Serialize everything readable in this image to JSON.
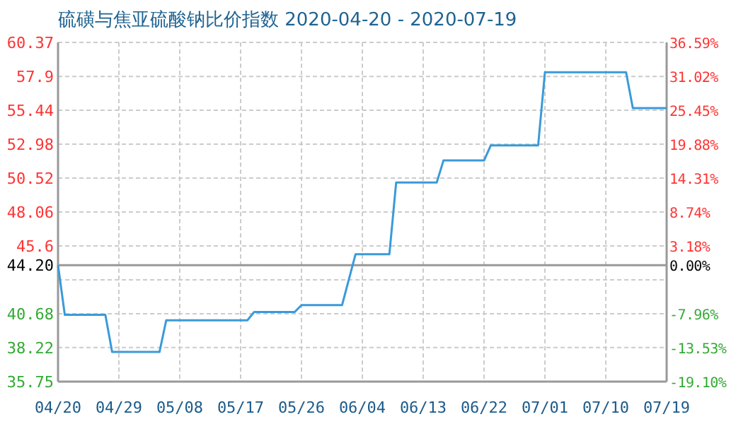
{
  "chart_data": {
    "type": "line",
    "title": "硫磺与焦亚硫酸钠比价指数 2020-04-20 - 2020-07-19",
    "series": [
      {
        "color": "#3a9ad9",
        "x": [
          "2020-04-20",
          "2020-04-21",
          "2020-04-27",
          "2020-04-28",
          "2020-05-05",
          "2020-05-06",
          "2020-05-18",
          "2020-05-19",
          "2020-05-25",
          "2020-05-26",
          "2020-06-01",
          "2020-06-03",
          "2020-06-08",
          "2020-06-09",
          "2020-06-15",
          "2020-06-16",
          "2020-06-22",
          "2020-06-23",
          "2020-06-30",
          "2020-07-01",
          "2020-07-13",
          "2020-07-14",
          "2020-07-19"
        ],
        "values": [
          44.2,
          40.6,
          40.6,
          37.9,
          37.9,
          40.2,
          40.2,
          40.8,
          40.8,
          41.3,
          41.3,
          45.0,
          45.0,
          50.2,
          50.2,
          51.8,
          51.8,
          52.9,
          52.9,
          58.2,
          58.2,
          55.6,
          55.6
        ]
      }
    ],
    "xlim": [
      "2020-04-20",
      "2020-07-19"
    ],
    "xticks": [
      {
        "value": "2020-04-20",
        "label": "04/20"
      },
      {
        "value": "2020-04-29",
        "label": "04/29"
      },
      {
        "value": "2020-05-08",
        "label": "05/08"
      },
      {
        "value": "2020-05-17",
        "label": "05/17"
      },
      {
        "value": "2020-05-26",
        "label": "05/26"
      },
      {
        "value": "2020-06-04",
        "label": "06/04"
      },
      {
        "value": "2020-06-13",
        "label": "06/13"
      },
      {
        "value": "2020-06-22",
        "label": "06/22"
      },
      {
        "value": "2020-07-01",
        "label": "07/01"
      },
      {
        "value": "2020-07-10",
        "label": "07/10"
      },
      {
        "value": "2020-07-19",
        "label": "07/19"
      }
    ],
    "ylim": [
      35.75,
      60.37
    ],
    "yticks": [
      35.75,
      38.22,
      40.68,
      {
        "value": 43.14,
        "label": null
      },
      {
        "value": 44.2,
        "label": "44.20"
      },
      45.6,
      48.06,
      50.52,
      52.98,
      57.9,
      55.44,
      60.37
    ],
    "y2lim": [
      -19.1,
      36.59
    ],
    "y2ticks": [
      {
        "value": -19.1,
        "label": "-19.10%"
      },
      {
        "value": -13.53,
        "label": "-13.53%"
      },
      {
        "value": -7.96,
        "label": "-7.96%"
      },
      {
        "value": 0,
        "label": "0.00%"
      },
      {
        "value": 3.18,
        "label": "3.18%"
      },
      {
        "value": 8.74,
        "label": "8.74%"
      },
      {
        "value": 14.31,
        "label": "14.31%"
      },
      {
        "value": 19.88,
        "label": "19.88%"
      },
      {
        "value": 25.45,
        "label": "25.45%"
      },
      {
        "value": 31.02,
        "label": "31.02%"
      },
      {
        "value": 36.59,
        "label": "36.59%"
      }
    ],
    "ref_lines": [
      {
        "axis": "y",
        "value": 44.2,
        "color": "#999999"
      }
    ],
    "grid": true,
    "line_style": "solid"
  }
}
